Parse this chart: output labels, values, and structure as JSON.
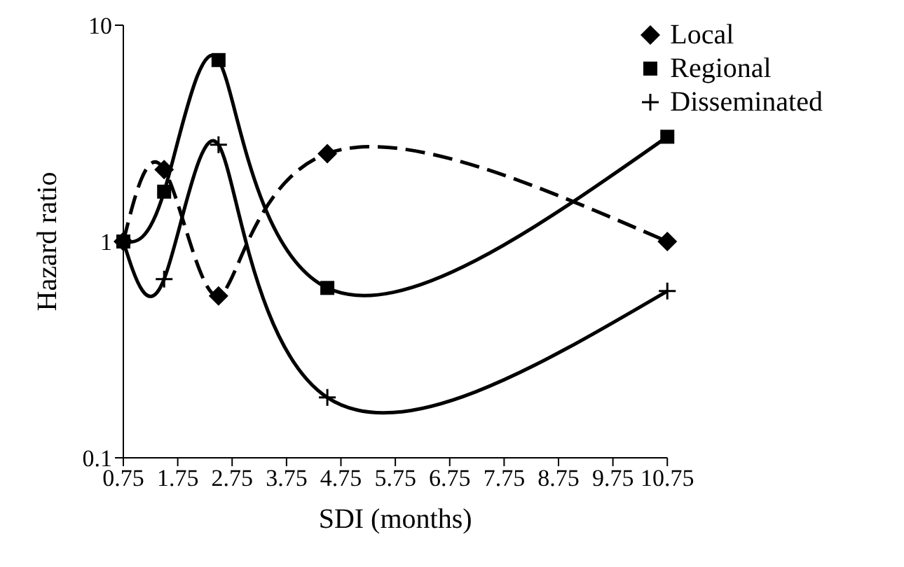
{
  "chart_data": {
    "type": "line",
    "xlabel": "SDI (months)",
    "ylabel": "Hazard ratio",
    "x": [
      0.75,
      1.5,
      2.5,
      4.5,
      10.75
    ],
    "series": [
      {
        "name": "Local",
        "color": "#000000",
        "marker": "diamond",
        "line_style": "dashed",
        "values": [
          1,
          2.15,
          0.56,
          2.55,
          1.0
        ]
      },
      {
        "name": "Regional",
        "color": "#000000",
        "marker": "square",
        "line_style": "solid",
        "values": [
          1,
          1.7,
          6.9,
          0.61,
          3.05
        ]
      },
      {
        "name": "Disseminated",
        "color": "#000000",
        "marker": "cross",
        "line_style": "solid",
        "values": [
          1,
          0.67,
          2.8,
          0.19,
          0.59
        ]
      }
    ],
    "xlim": [
      0.75,
      10.75
    ],
    "xticks": [
      0.75,
      1.75,
      2.75,
      3.75,
      4.75,
      5.75,
      6.75,
      7.75,
      8.75,
      9.75,
      10.75
    ],
    "ylim": [
      0.1,
      10
    ],
    "yticks": [
      0.1,
      1,
      10
    ],
    "log": true,
    "grid": false,
    "legend": "top right"
  }
}
